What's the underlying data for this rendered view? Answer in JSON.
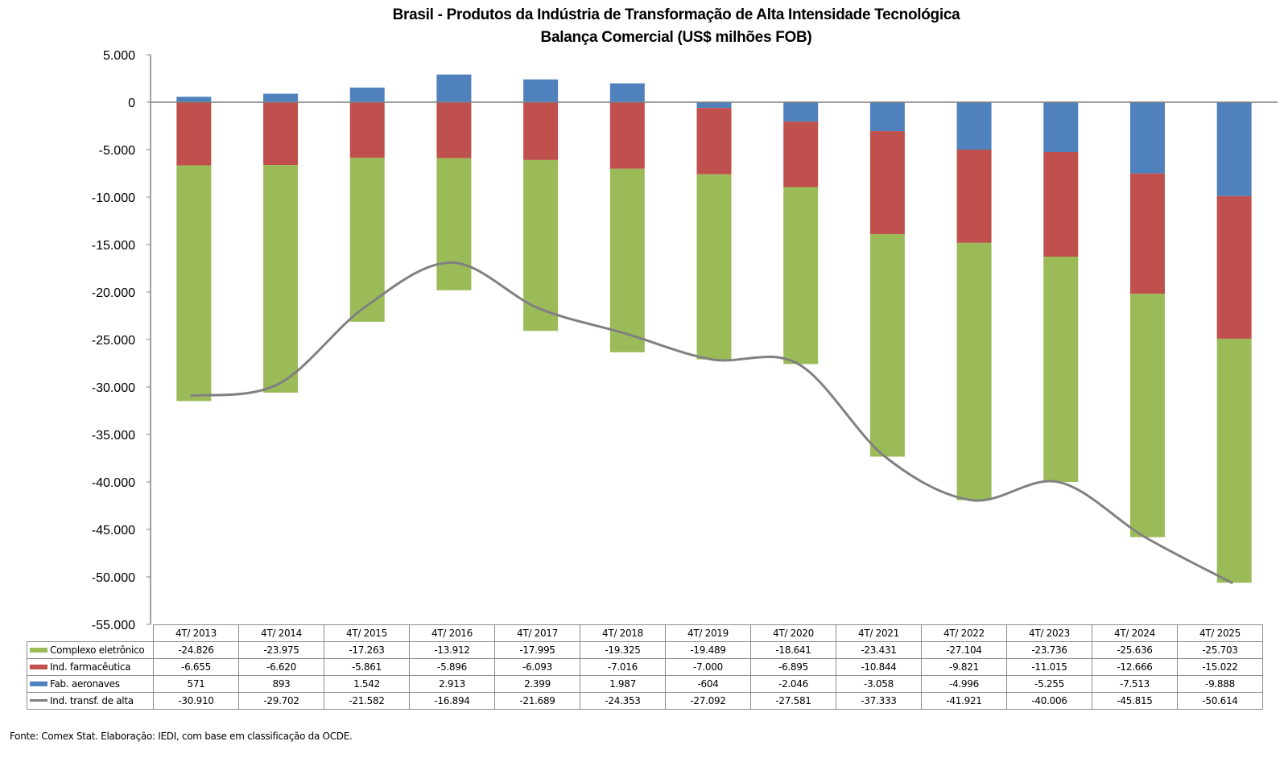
{
  "chart_data": {
    "type": "bar",
    "subtype": "stacked-bar-with-line",
    "title": "Brasil - Produtos da Indústria de Transformação de Alta Intensidade Tecnológica",
    "subtitle": "Balança Comercial (US$ milhões FOB)",
    "xlabel": "",
    "ylabel": "",
    "ylim": [
      -55000,
      5000
    ],
    "yticks": [
      5000,
      0,
      -5000,
      -10000,
      -15000,
      -20000,
      -25000,
      -30000,
      -35000,
      -40000,
      -45000,
      -50000,
      -55000
    ],
    "ytick_labels": [
      "5.000",
      "0",
      "-5.000",
      "-10.000",
      "-15.000",
      "-20.000",
      "-25.000",
      "-30.000",
      "-35.000",
      "-40.000",
      "-45.000",
      "-50.000",
      "-55.000"
    ],
    "grid": false,
    "legend_placement": "data-table-bottom",
    "categories": [
      "4T/ 2013",
      "4T/ 2014",
      "4T/ 2015",
      "4T/ 2016",
      "4T/ 2017",
      "4T/ 2018",
      "4T/ 2019",
      "4T/ 2020",
      "4T/ 2021",
      "4T/ 2022",
      "4T/ 2023",
      "4T/ 2024",
      "4T/ 2025"
    ],
    "series": [
      {
        "name": "Complexo eletrônico",
        "kind": "bar",
        "color": "#9BBB59",
        "values": [
          -24826,
          -23975,
          -17263,
          -13912,
          -17995,
          -19325,
          -19489,
          -18641,
          -23431,
          -27104,
          -23736,
          -25636,
          -25703
        ],
        "labels": [
          "-24.826",
          "-23.975",
          "-17.263",
          "-13.912",
          "-17.995",
          "-19.325",
          "-19.489",
          "-18.641",
          "-23.431",
          "-27.104",
          "-23.736",
          "-25.636",
          "-25.703"
        ]
      },
      {
        "name": "Ind. farmacêutica",
        "kind": "bar",
        "color": "#C0504D",
        "values": [
          -6655,
          -6620,
          -5861,
          -5896,
          -6093,
          -7016,
          -7000,
          -6895,
          -10844,
          -9821,
          -11015,
          -12666,
          -15022
        ],
        "labels": [
          "-6.655",
          "-6.620",
          "-5.861",
          "-5.896",
          "-6.093",
          "-7.016",
          "-7.000",
          "-6.895",
          "-10.844",
          "-9.821",
          "-11.015",
          "-12.666",
          "-15.022"
        ]
      },
      {
        "name": "Fab. aeronaves",
        "kind": "bar",
        "color": "#4F81BD",
        "values": [
          571,
          893,
          1542,
          2913,
          2399,
          1987,
          -604,
          -2046,
          -3058,
          -4996,
          -5255,
          -7513,
          -9888
        ],
        "labels": [
          "571",
          "893",
          "1.542",
          "2.913",
          "2.399",
          "1.987",
          "-604",
          "-2.046",
          "-3.058",
          "-4.996",
          "-5.255",
          "-7.513",
          "-9.888"
        ]
      },
      {
        "name": "Ind. transf. de alta",
        "kind": "line",
        "color": "#808080",
        "values": [
          -30910,
          -29702,
          -21582,
          -16894,
          -21689,
          -24353,
          -27092,
          -27581,
          -37333,
          -41921,
          -40006,
          -45815,
          -50614
        ],
        "labels": [
          "-30.910",
          "-29.702",
          "-21.582",
          "-16.894",
          "-21.689",
          "-24.353",
          "-27.092",
          "-27.581",
          "-37.333",
          "-41.921",
          "-40.006",
          "-45.815",
          "-50.614"
        ]
      }
    ]
  },
  "footer": {
    "source": "Fonte:  Comex Stat. Elaboração: IEDI, com base em classificação da OCDE."
  }
}
